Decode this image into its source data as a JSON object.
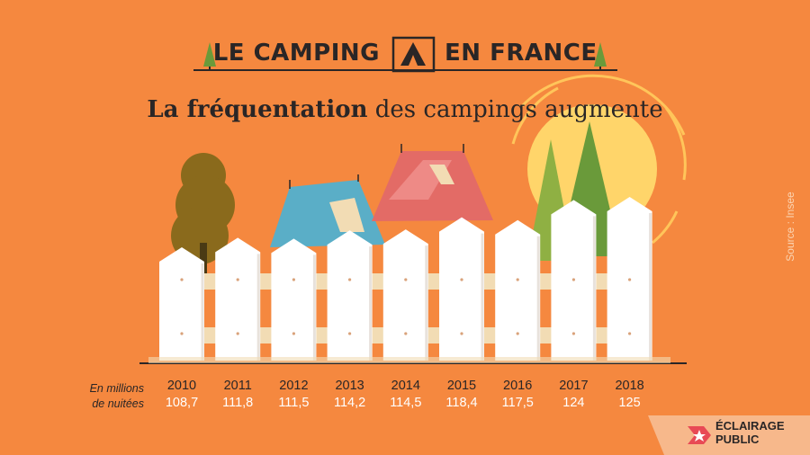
{
  "header": {
    "title_left": "LE CAMPING",
    "title_right": "EN FRANCE",
    "subtitle_bold": "La fréquentation",
    "subtitle_rest": "des campings augmente"
  },
  "source": "Source : Insee",
  "unit_note_line1": "En millions",
  "unit_note_line2": "de nuitées",
  "logo": {
    "line1": "ÉCLAIRAGE",
    "line2": "PUBLIC"
  },
  "colors": {
    "background": "#f5883f",
    "picket": "#ffffff",
    "tree_dark": "#8a6a1c",
    "tent_blue": "#5aaec7",
    "tent_red": "#e36b66",
    "sun": "#ffd56a",
    "pine": "#6a9a3a"
  },
  "chart_data": {
    "type": "bar",
    "categories": [
      "2010",
      "2011",
      "2012",
      "2013",
      "2014",
      "2015",
      "2016",
      "2017",
      "2018"
    ],
    "value_labels": [
      "108,7",
      "111,8",
      "111,5",
      "114,2",
      "114,5",
      "118,4",
      "117,5",
      "124",
      "125"
    ],
    "values": [
      108.7,
      111.8,
      111.5,
      114.2,
      114.5,
      118.4,
      117.5,
      124,
      125
    ],
    "unit": "En millions de nuitées"
  }
}
